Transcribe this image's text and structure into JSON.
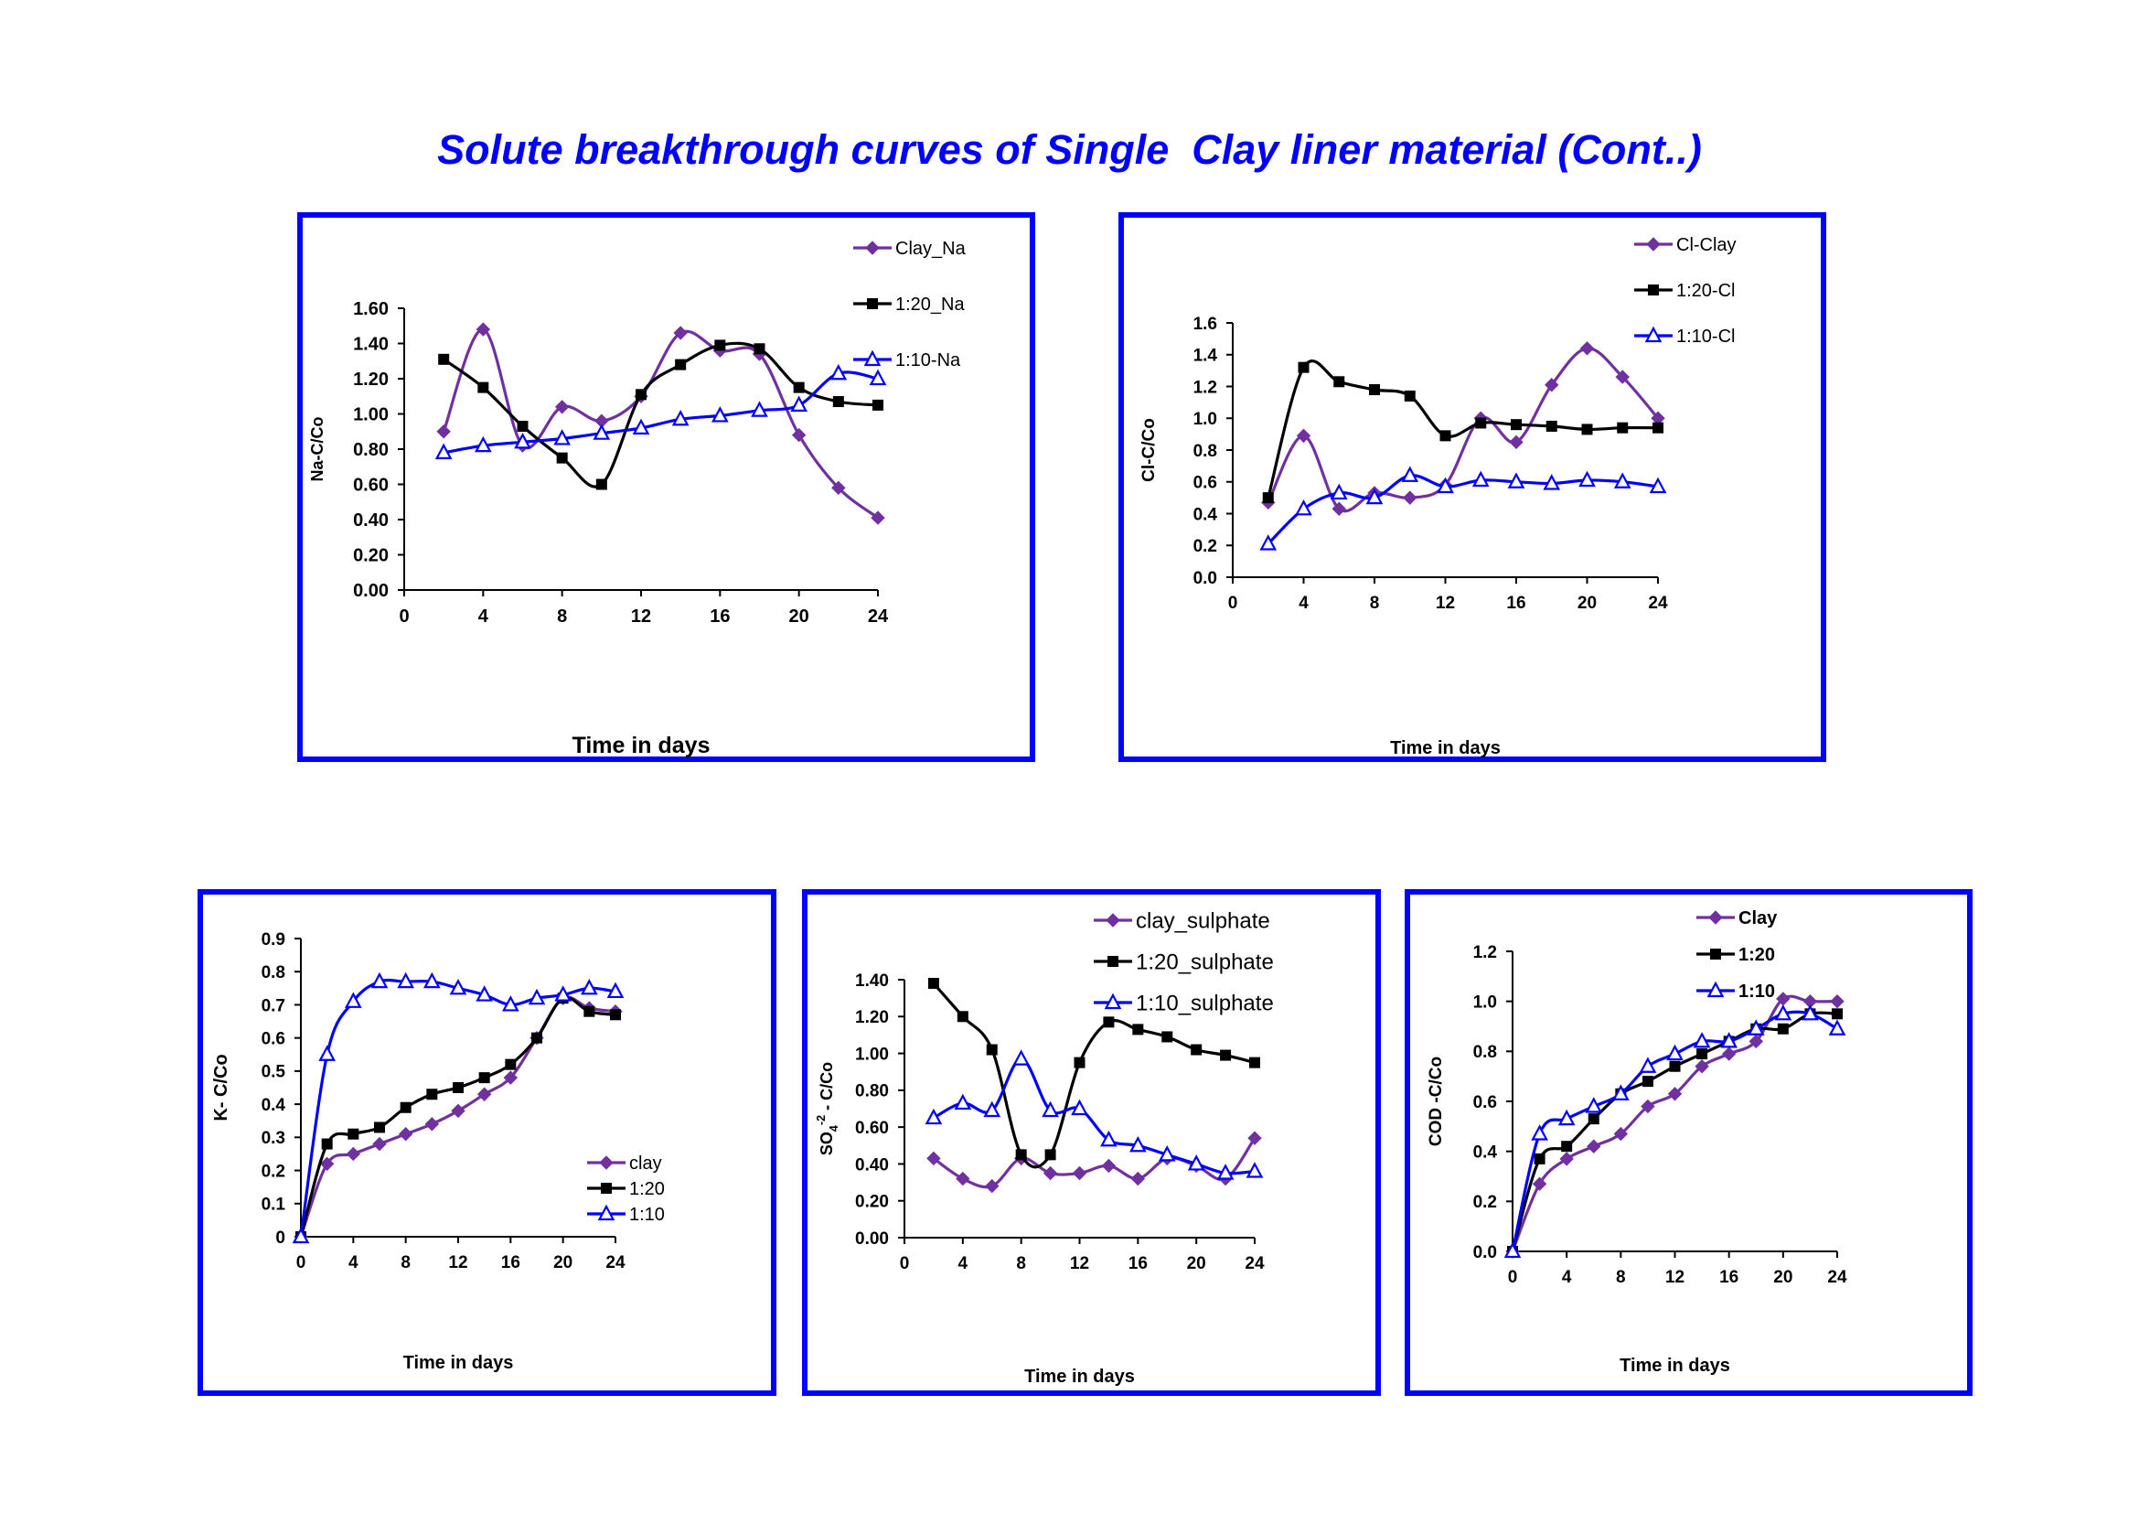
{
  "title": "Solute breakthrough curves of Single  Clay liner material (Cont..)",
  "colors": {
    "clay": "#7030a0",
    "r20": "#000000",
    "r10": "#0000ff",
    "frame": "#0000ff",
    "title": "#0000ff"
  },
  "chart_data": [
    {
      "id": "na",
      "type": "line",
      "xlabel": "Time in days",
      "ylabel": "Na-C/Co",
      "xlim": [
        0,
        24
      ],
      "ylim": [
        0,
        1.6
      ],
      "xticks": [
        "0",
        "4",
        "8",
        "12",
        "16",
        "20",
        "24"
      ],
      "yticks": [
        "0.00",
        "0.20",
        "0.40",
        "0.60",
        "0.80",
        "1.00",
        "1.20",
        "1.40",
        "1.60"
      ],
      "legend_position": "top-right",
      "series": [
        {
          "name": "Clay_Na",
          "marker": "diamond",
          "x": [
            2,
            4,
            6,
            8,
            10,
            12,
            14,
            16,
            18,
            20,
            22,
            24
          ],
          "y": [
            0.9,
            1.48,
            0.82,
            1.04,
            0.96,
            1.1,
            1.46,
            1.36,
            1.34,
            0.88,
            0.58,
            0.41
          ]
        },
        {
          "name": "1:20_Na",
          "marker": "square",
          "x": [
            2,
            4,
            6,
            8,
            10,
            12,
            14,
            16,
            18,
            20,
            22,
            24
          ],
          "y": [
            1.31,
            1.15,
            0.93,
            0.75,
            0.6,
            1.11,
            1.28,
            1.39,
            1.37,
            1.15,
            1.07,
            1.05
          ]
        },
        {
          "name": "1:10-Na",
          "marker": "triangle",
          "x": [
            2,
            4,
            6,
            8,
            10,
            12,
            14,
            16,
            18,
            20,
            22,
            24
          ],
          "y": [
            0.78,
            0.82,
            0.84,
            0.86,
            0.89,
            0.92,
            0.97,
            0.99,
            1.02,
            1.05,
            1.23,
            1.2
          ]
        }
      ]
    },
    {
      "id": "cl",
      "type": "line",
      "xlabel": "Time in days",
      "ylabel": "Cl-C/Co",
      "xlim": [
        0,
        24
      ],
      "ylim": [
        0,
        1.6
      ],
      "xticks": [
        "0",
        "4",
        "8",
        "12",
        "16",
        "20",
        "24"
      ],
      "yticks": [
        "0.0",
        "0.2",
        "0.4",
        "0.6",
        "0.8",
        "1.0",
        "1.2",
        "1.4",
        "1.6"
      ],
      "legend_position": "top-right",
      "series": [
        {
          "name": "Cl-Clay",
          "marker": "diamond",
          "x": [
            2,
            4,
            6,
            8,
            10,
            12,
            14,
            16,
            18,
            20,
            22,
            24
          ],
          "y": [
            0.47,
            0.89,
            0.43,
            0.53,
            0.5,
            0.58,
            1.0,
            0.85,
            1.21,
            1.44,
            1.26,
            1.0
          ]
        },
        {
          "name": "1:20-Cl",
          "marker": "square",
          "x": [
            2,
            4,
            6,
            8,
            10,
            12,
            14,
            16,
            18,
            20,
            22,
            24
          ],
          "y": [
            0.5,
            1.32,
            1.23,
            1.18,
            1.14,
            0.89,
            0.97,
            0.96,
            0.95,
            0.93,
            0.94,
            0.94
          ]
        },
        {
          "name": "1:10-Cl",
          "marker": "triangle",
          "x": [
            2,
            4,
            6,
            8,
            10,
            12,
            14,
            16,
            18,
            20,
            22,
            24
          ],
          "y": [
            0.21,
            0.43,
            0.53,
            0.5,
            0.64,
            0.57,
            0.61,
            0.6,
            0.59,
            0.61,
            0.6,
            0.57
          ]
        }
      ]
    },
    {
      "id": "k",
      "type": "line",
      "xlabel": "Time in days",
      "ylabel": "K- C/Co",
      "xlim": [
        0,
        24
      ],
      "ylim": [
        0,
        0.9
      ],
      "xticks": [
        "0",
        "4",
        "8",
        "12",
        "16",
        "20",
        "24"
      ],
      "yticks": [
        "0",
        "0.1",
        "0.2",
        "0.3",
        "0.4",
        "0.5",
        "0.6",
        "0.7",
        "0.8",
        "0.9"
      ],
      "legend_position": "bottom-right",
      "series": [
        {
          "name": "clay",
          "marker": "diamond",
          "x": [
            0,
            2,
            4,
            6,
            8,
            10,
            12,
            14,
            16,
            18,
            20,
            22,
            24
          ],
          "y": [
            0,
            0.22,
            0.25,
            0.28,
            0.31,
            0.34,
            0.38,
            0.43,
            0.48,
            0.6,
            0.72,
            0.69,
            0.68
          ]
        },
        {
          "name": "1:20",
          "marker": "square",
          "x": [
            0,
            2,
            4,
            6,
            8,
            10,
            12,
            14,
            16,
            18,
            20,
            22,
            24
          ],
          "y": [
            0,
            0.28,
            0.31,
            0.33,
            0.39,
            0.43,
            0.45,
            0.48,
            0.52,
            0.6,
            0.72,
            0.68,
            0.67
          ]
        },
        {
          "name": "1:10",
          "marker": "triangle",
          "x": [
            0,
            2,
            4,
            6,
            8,
            10,
            12,
            14,
            16,
            18,
            20,
            22,
            24
          ],
          "y": [
            0,
            0.55,
            0.71,
            0.77,
            0.77,
            0.77,
            0.75,
            0.73,
            0.7,
            0.72,
            0.73,
            0.75,
            0.74
          ]
        }
      ]
    },
    {
      "id": "so4",
      "type": "line",
      "xlabel": "Time in days",
      "ylabel": "SO4-2 - C/Co",
      "ylabel_parts": {
        "base": "SO",
        "sub": "4",
        "sup": "-2",
        "rest": " - C/Co"
      },
      "xlim": [
        0,
        24
      ],
      "ylim": [
        0,
        1.4
      ],
      "xticks": [
        "0",
        "4",
        "8",
        "12",
        "16",
        "20",
        "24"
      ],
      "yticks": [
        "0.00",
        "0.20",
        "0.40",
        "0.60",
        "0.80",
        "1.00",
        "1.20",
        "1.40"
      ],
      "legend_position": "top-right",
      "series": [
        {
          "name": "clay_sulphate",
          "marker": "diamond",
          "x": [
            2,
            4,
            6,
            8,
            10,
            12,
            14,
            16,
            18,
            20,
            22,
            24
          ],
          "y": [
            0.43,
            0.32,
            0.28,
            0.43,
            0.35,
            0.35,
            0.39,
            0.32,
            0.43,
            0.39,
            0.32,
            0.54
          ]
        },
        {
          "name": "1:20_sulphate",
          "marker": "square",
          "x": [
            2,
            4,
            6,
            8,
            10,
            12,
            14,
            16,
            18,
            20,
            22,
            24
          ],
          "y": [
            1.38,
            1.2,
            1.02,
            0.45,
            0.45,
            0.95,
            1.17,
            1.13,
            1.09,
            1.02,
            0.99,
            0.95
          ]
        },
        {
          "name": "1:10_sulphate",
          "marker": "triangle",
          "x": [
            2,
            4,
            6,
            8,
            10,
            12,
            14,
            16,
            18,
            20,
            22,
            24
          ],
          "y": [
            0.65,
            0.73,
            0.69,
            0.97,
            0.69,
            0.7,
            0.53,
            0.5,
            0.45,
            0.4,
            0.35,
            0.36
          ]
        }
      ]
    },
    {
      "id": "cod",
      "type": "line",
      "xlabel": "Time in days",
      "ylabel": "COD -C/Co",
      "xlim": [
        0,
        24
      ],
      "ylim": [
        0,
        1.2
      ],
      "xticks": [
        "0",
        "4",
        "8",
        "12",
        "16",
        "20",
        "24"
      ],
      "yticks": [
        "0.0",
        "0.2",
        "0.4",
        "0.6",
        "0.8",
        "1.0",
        "1.2"
      ],
      "legend_position": "top-left",
      "series": [
        {
          "name": "Clay",
          "marker": "diamond",
          "x": [
            0,
            2,
            4,
            6,
            8,
            10,
            12,
            14,
            16,
            18,
            20,
            22,
            24
          ],
          "y": [
            0,
            0.27,
            0.37,
            0.42,
            0.47,
            0.58,
            0.63,
            0.74,
            0.79,
            0.84,
            1.01,
            1.0,
            1.0
          ]
        },
        {
          "name": "1:20",
          "marker": "square",
          "x": [
            0,
            2,
            4,
            6,
            8,
            10,
            12,
            14,
            16,
            18,
            20,
            22,
            24
          ],
          "y": [
            0,
            0.37,
            0.42,
            0.53,
            0.63,
            0.68,
            0.74,
            0.79,
            0.84,
            0.89,
            0.89,
            0.95,
            0.95
          ]
        },
        {
          "name": "1:10",
          "marker": "triangle",
          "x": [
            0,
            2,
            4,
            6,
            8,
            10,
            12,
            14,
            16,
            18,
            20,
            22,
            24
          ],
          "y": [
            0,
            0.47,
            0.53,
            0.58,
            0.63,
            0.74,
            0.79,
            0.84,
            0.84,
            0.89,
            0.95,
            0.95,
            0.89
          ]
        }
      ]
    }
  ]
}
